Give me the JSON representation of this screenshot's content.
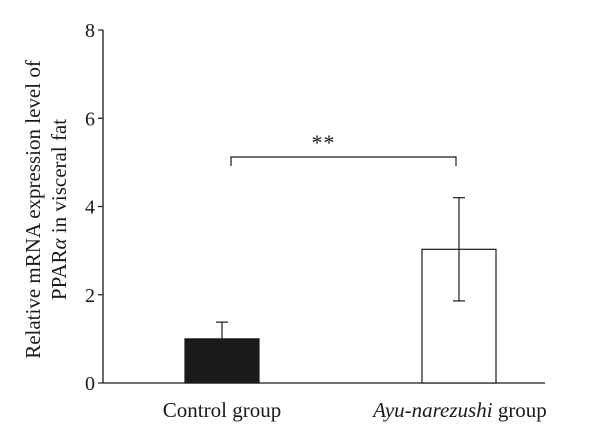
{
  "chart_data": {
    "type": "bar",
    "categories": [
      "Control group",
      "Ayu-narezushi group"
    ],
    "category_parts": [
      [
        {
          "text": "Control group",
          "italic": false
        }
      ],
      [
        {
          "text": "Ayu-narezushi",
          "italic": true
        },
        {
          "text": " group",
          "italic": false
        }
      ]
    ],
    "values": [
      1.0,
      3.03
    ],
    "error": [
      0.38,
      1.17
    ],
    "bar_fills": [
      "#1a1a1a",
      "#ffffff"
    ],
    "ylim": [
      0,
      8
    ],
    "yticks": [
      0,
      2,
      4,
      6,
      8
    ],
    "ylabel_line1": "Relative mRNA expression level of",
    "ylabel_line2_parts": [
      {
        "text": "PPAR",
        "italic": false
      },
      {
        "text": "α",
        "italic": true
      },
      {
        "text": " in visceral fat",
        "italic": false
      }
    ],
    "significance": "**",
    "grid": false
  }
}
